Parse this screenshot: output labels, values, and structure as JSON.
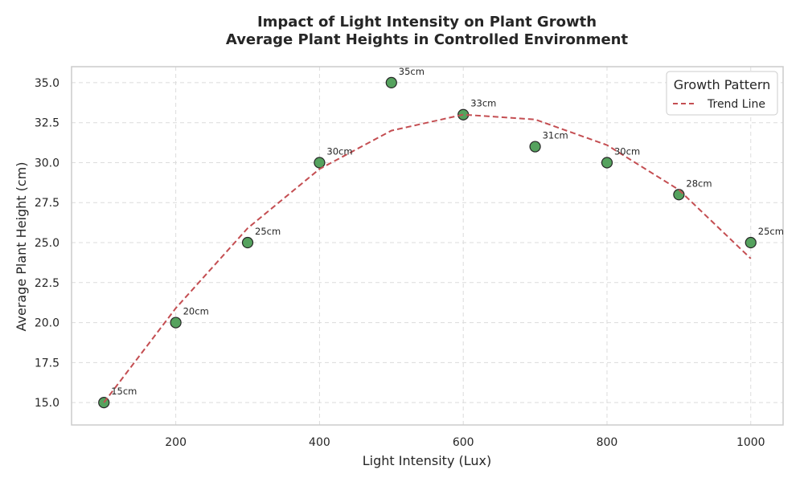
{
  "chart_data": {
    "type": "scatter",
    "title": "Impact of Light Intensity on Plant Growth",
    "subtitle": "Average Plant Heights in Controlled Environment",
    "xlabel": "Light Intensity (Lux)",
    "ylabel": "Average Plant Height (cm)",
    "xlim": [
      55,
      1045
    ],
    "ylim": [
      13.6,
      36.0
    ],
    "xticks": [
      200,
      400,
      600,
      800,
      1000
    ],
    "yticks": [
      15.0,
      17.5,
      20.0,
      22.5,
      25.0,
      27.5,
      30.0,
      32.5,
      35.0
    ],
    "grid": true,
    "legend": {
      "title": "Growth Pattern",
      "placement": "top-right"
    },
    "series": [
      {
        "kind": "scatter",
        "color": "#55a25e",
        "x": [
          100,
          200,
          300,
          400,
          500,
          600,
          700,
          800,
          900,
          1000
        ],
        "y": [
          15,
          20,
          25,
          30,
          35,
          33,
          31,
          30,
          28,
          25
        ],
        "labels": [
          "15cm",
          "20cm",
          "25cm",
          "30cm",
          "35cm",
          "33cm",
          "31cm",
          "30cm",
          "28cm",
          "25cm"
        ]
      },
      {
        "kind": "line",
        "name": "Trend Line",
        "color": "#c44e52",
        "style": "dashed",
        "x": [
          100,
          200,
          300,
          400,
          500,
          600,
          700,
          800,
          900,
          1000
        ],
        "y": [
          15.0,
          20.9,
          25.9,
          29.6,
          32.0,
          33.0,
          32.7,
          31.1,
          28.3,
          24.0
        ]
      }
    ]
  }
}
